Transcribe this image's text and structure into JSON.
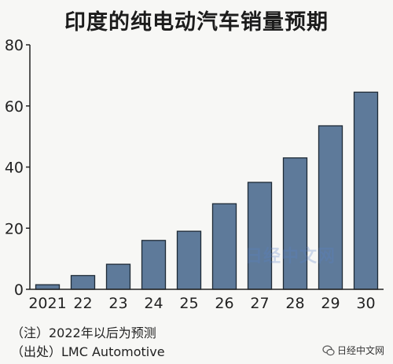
{
  "chart_data": {
    "type": "bar",
    "title": "印度的纯电动汽车销量预期",
    "categories": [
      "2021",
      "22",
      "23",
      "24",
      "25",
      "26",
      "27",
      "28",
      "29",
      "30"
    ],
    "values": [
      1.5,
      4.5,
      8.2,
      16,
      19,
      28,
      35,
      43,
      53.5,
      64.5
    ],
    "ylim": [
      0,
      80
    ],
    "yticks": [
      "0",
      "20",
      "40",
      "60",
      "80"
    ],
    "grid": false,
    "colors": {
      "bar": "#5e7a9a",
      "bar_stroke": "#1e2a36",
      "axis": "#222222"
    }
  },
  "notes": {
    "line1": "（注）2022年以后为预测",
    "line2": "（出处）LMC Automotive"
  },
  "watermark": "日经中文网",
  "wechat_label": "日经中文网"
}
